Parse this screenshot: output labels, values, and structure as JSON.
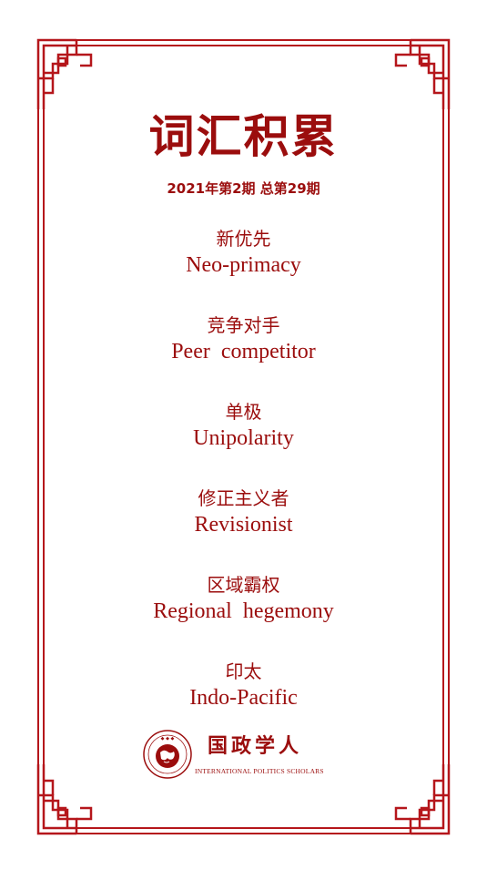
{
  "title": "词汇积累",
  "issue": "2021年第2期  总第29期",
  "terms": [
    {
      "zh": "新优先",
      "en": "Neo-primacy"
    },
    {
      "zh": "竞争对手",
      "en": "Peer  competitor"
    },
    {
      "zh": "单极",
      "en": "Unipolarity"
    },
    {
      "zh": "修正主义者",
      "en": "Revisionist"
    },
    {
      "zh": "区域霸权",
      "en": "Regional  hegemony"
    },
    {
      "zh": "印太",
      "en": "Indo-Pacific"
    }
  ],
  "logo": {
    "name": "国政学人",
    "subtitle": "INTERNATIONAL POLITICS SCHOLARS",
    "seal_text": "国政学人"
  },
  "colors": {
    "accent": "#9b0d0d",
    "border": "#b5161b",
    "background": "#ffffff"
  },
  "icons": {
    "frame": "chinese-lattice-frame",
    "seal": "globe-seal-icon"
  }
}
